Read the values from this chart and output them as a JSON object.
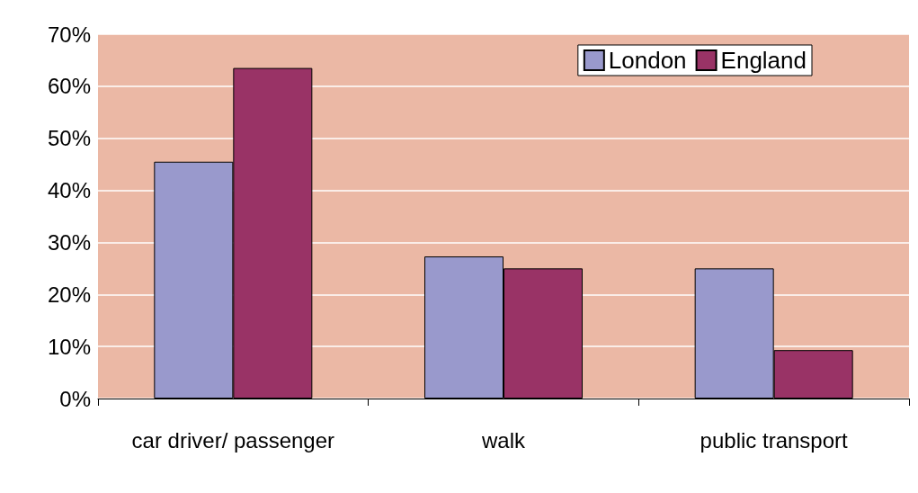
{
  "chart_data": {
    "type": "bar",
    "categories": [
      "car driver/ passenger",
      "walk",
      "public transport"
    ],
    "series": [
      {
        "name": "London",
        "color": "#9999cc",
        "values": [
          45.5,
          27.3,
          25
        ]
      },
      {
        "name": "England",
        "color": "#993366",
        "values": [
          63.5,
          25,
          9.3
        ]
      }
    ],
    "ylim": [
      0,
      70
    ],
    "yticks": [
      {
        "value": 0,
        "label": "0%"
      },
      {
        "value": 10,
        "label": "10%"
      },
      {
        "value": 20,
        "label": "20%"
      },
      {
        "value": 30,
        "label": "30%"
      },
      {
        "value": 40,
        "label": "40%"
      },
      {
        "value": 50,
        "label": "50%"
      },
      {
        "value": 60,
        "label": "60%"
      },
      {
        "value": 70,
        "label": "70%"
      }
    ],
    "grid": "y",
    "legend": "top right"
  }
}
